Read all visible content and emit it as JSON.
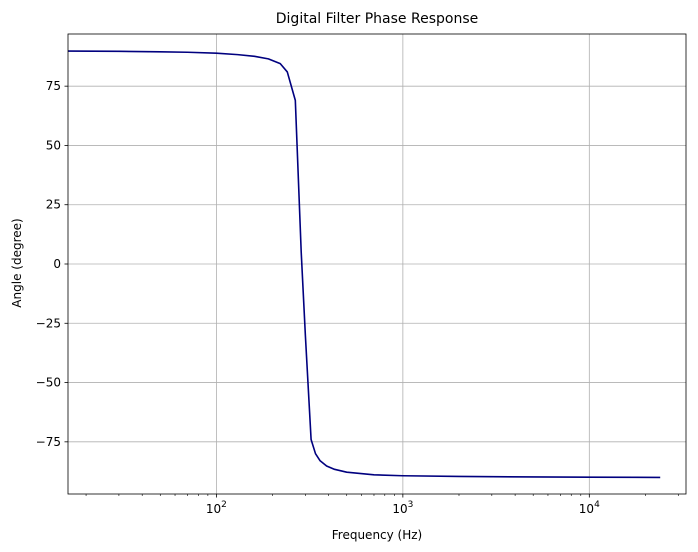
{
  "chart_data": {
    "type": "line",
    "title": "Digital Filter Phase Response",
    "xlabel": "Frequency (Hz)",
    "ylabel": "Angle (degree)",
    "xscale": "log",
    "xlim": [
      16,
      33000
    ],
    "ylim": [
      -97,
      97
    ],
    "grid": true,
    "line_color": "#00007f",
    "grid_color": "#b0b0b0",
    "x_ticks": [
      {
        "value": 100,
        "base": "10",
        "exp": "2"
      },
      {
        "value": 1000,
        "base": "10",
        "exp": "3"
      },
      {
        "value": 10000,
        "base": "10",
        "exp": "4"
      }
    ],
    "y_ticks": [
      {
        "value": 75,
        "label": "75"
      },
      {
        "value": 50,
        "label": "50"
      },
      {
        "value": 25,
        "label": "25"
      },
      {
        "value": 0,
        "label": "0"
      },
      {
        "value": -25,
        "label": "−25"
      },
      {
        "value": -50,
        "label": "−50"
      },
      {
        "value": -75,
        "label": "−75"
      }
    ],
    "series": [
      {
        "x": [
          16,
          30,
          50,
          70,
          100,
          130,
          160,
          190,
          220,
          240,
          265,
          285,
          300,
          322,
          340,
          360,
          390,
          430,
          500,
          700,
          1000,
          2000,
          5000,
          10000,
          24000
        ],
        "y": [
          89.8,
          89.7,
          89.5,
          89.3,
          88.9,
          88.3,
          87.6,
          86.5,
          84.5,
          81.0,
          69.0,
          5.0,
          -30.0,
          -74.0,
          -80.0,
          -83.0,
          -85.2,
          -86.6,
          -87.8,
          -88.9,
          -89.3,
          -89.6,
          -89.8,
          -89.9,
          -90.0
        ]
      }
    ]
  }
}
